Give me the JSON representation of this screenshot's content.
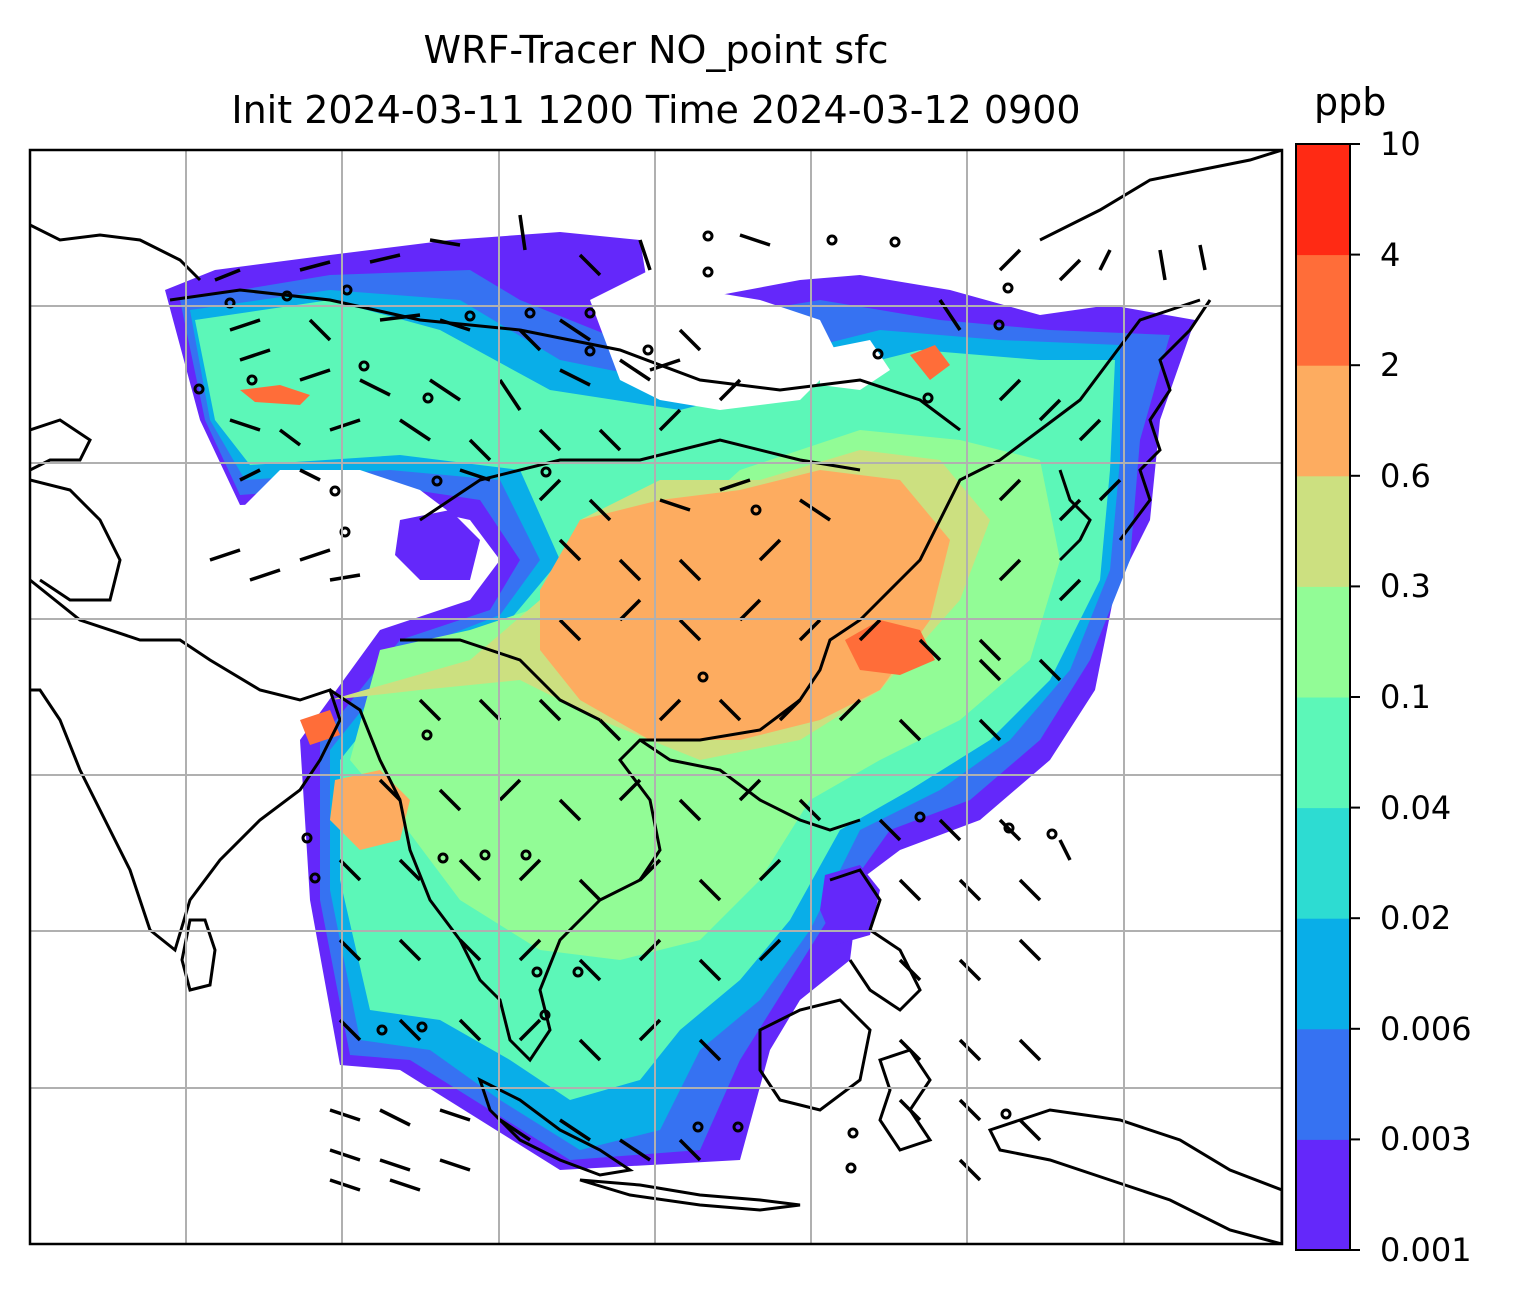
{
  "title": "WRF-Tracer NO_point sfc",
  "subtitle": "Init 2024-03-11 1200 Time 2024-03-12 0900",
  "colorbar": {
    "unit": "ppb",
    "levels": [
      "0.001",
      "0.003",
      "0.006",
      "0.02",
      "0.04",
      "0.1",
      "0.3",
      "0.6",
      "2",
      "4",
      "10"
    ],
    "colors": [
      "#6428fa",
      "#3672f2",
      "#09aee8",
      "#2ddcd2",
      "#5cf7b8",
      "#92fc96",
      "#cce080",
      "#fdac60",
      "#ff6d39",
      "#ff2a14"
    ]
  },
  "map": {
    "grid_color": "#b0b0b0",
    "coastline_color": "#000000",
    "overlay": "wind-barbs"
  }
}
